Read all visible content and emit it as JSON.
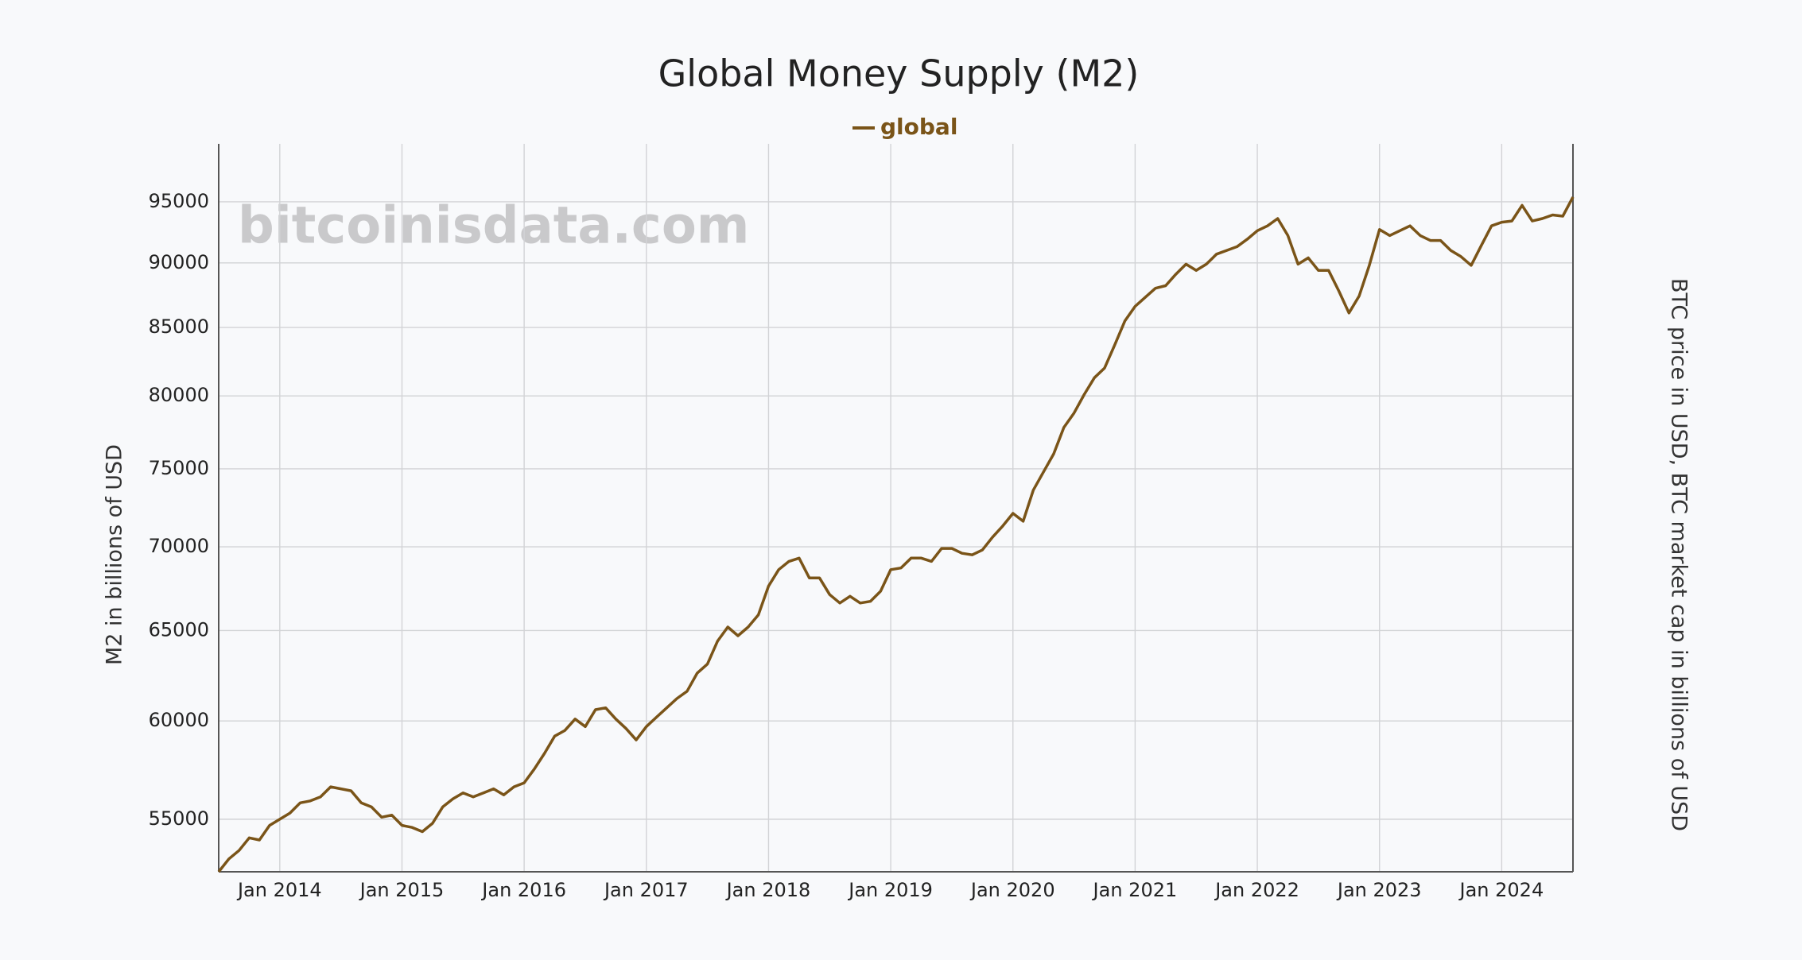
{
  "chart_data": {
    "type": "line",
    "title": "Global Money Supply (M2)",
    "watermark": "bitcoinisdata.com",
    "y_label": "M2 in billions of USD",
    "y2_label": "BTC price in USD, BTC market cap in billions of USD",
    "legend": "top",
    "log_scale": true,
    "grid": true,
    "x": [
      "2013-07",
      "2013-08",
      "2013-09",
      "2013-10",
      "2013-11",
      "2013-12",
      "2014-01",
      "2014-02",
      "2014-03",
      "2014-04",
      "2014-05",
      "2014-06",
      "2014-07",
      "2014-08",
      "2014-09",
      "2014-10",
      "2014-11",
      "2014-12",
      "2015-01",
      "2015-02",
      "2015-03",
      "2015-04",
      "2015-05",
      "2015-06",
      "2015-07",
      "2015-08",
      "2015-09",
      "2015-10",
      "2015-11",
      "2015-12",
      "2016-01",
      "2016-02",
      "2016-03",
      "2016-04",
      "2016-05",
      "2016-06",
      "2016-07",
      "2016-08",
      "2016-09",
      "2016-10",
      "2016-11",
      "2016-12",
      "2017-01",
      "2017-02",
      "2017-03",
      "2017-04",
      "2017-05",
      "2017-06",
      "2017-07",
      "2017-08",
      "2017-09",
      "2017-10",
      "2017-11",
      "2017-12",
      "2018-01",
      "2018-02",
      "2018-03",
      "2018-04",
      "2018-05",
      "2018-06",
      "2018-07",
      "2018-08",
      "2018-09",
      "2018-10",
      "2018-11",
      "2018-12",
      "2019-01",
      "2019-02",
      "2019-03",
      "2019-04",
      "2019-05",
      "2019-06",
      "2019-07",
      "2019-08",
      "2019-09",
      "2019-10",
      "2019-11",
      "2019-12",
      "2020-01",
      "2020-02",
      "2020-03",
      "2020-04",
      "2020-05",
      "2020-06",
      "2020-07",
      "2020-08",
      "2020-09",
      "2020-10",
      "2020-11",
      "2020-12",
      "2021-01",
      "2021-02",
      "2021-03",
      "2021-04",
      "2021-05",
      "2021-06",
      "2021-07",
      "2021-08",
      "2021-09",
      "2021-10",
      "2021-11",
      "2021-12",
      "2022-01",
      "2022-02",
      "2022-03",
      "2022-04",
      "2022-05",
      "2022-06",
      "2022-07",
      "2022-08",
      "2022-09",
      "2022-10",
      "2022-11",
      "2022-12",
      "2023-01",
      "2023-02",
      "2023-03",
      "2023-04",
      "2023-05",
      "2023-06",
      "2023-07",
      "2023-08",
      "2023-09",
      "2023-10",
      "2023-11",
      "2023-12",
      "2024-01",
      "2024-02",
      "2024-03",
      "2024-04",
      "2024-05",
      "2024-06",
      "2024-07",
      "2024-08"
    ],
    "series": [
      {
        "name": "global",
        "color": "#7a5418",
        "values": [
          52500,
          53100,
          53500,
          54100,
          54000,
          54700,
          55000,
          55300,
          55800,
          55900,
          56100,
          56600,
          56500,
          56400,
          55800,
          55600,
          55100,
          55200,
          54700,
          54600,
          54400,
          54800,
          55600,
          56000,
          56300,
          56100,
          56300,
          56500,
          56200,
          56600,
          56800,
          57500,
          58300,
          59200,
          59500,
          60100,
          59700,
          60600,
          60700,
          60100,
          59600,
          59000,
          59700,
          60200,
          60700,
          61200,
          61600,
          62600,
          63100,
          64400,
          65200,
          64700,
          65200,
          65900,
          67600,
          68600,
          69100,
          69300,
          68100,
          68100,
          67100,
          66600,
          67000,
          66600,
          66700,
          67300,
          68600,
          68700,
          69300,
          69300,
          69100,
          69900,
          69900,
          69600,
          69500,
          69800,
          70600,
          71300,
          72100,
          71600,
          73600,
          74800,
          76000,
          77800,
          78800,
          80100,
          81300,
          82000,
          83700,
          85500,
          86600,
          87300,
          88000,
          88200,
          89100,
          89900,
          89400,
          89900,
          90700,
          91000,
          91300,
          91900,
          92600,
          93000,
          93600,
          92200,
          89900,
          90400,
          89400,
          89400,
          87800,
          86100,
          87400,
          89800,
          92700,
          92200,
          92600,
          93000,
          92200,
          91800,
          91800,
          91000,
          90500,
          89800,
          91400,
          93000,
          93300,
          93400,
          94700,
          93400,
          93600,
          93900,
          93800,
          95400
        ]
      }
    ],
    "xlim": [
      "2013-07",
      "2024-08"
    ],
    "xticks": [
      {
        "value": "2014-01",
        "label": "Jan 2014"
      },
      {
        "value": "2015-01",
        "label": "Jan 2015"
      },
      {
        "value": "2016-01",
        "label": "Jan 2016"
      },
      {
        "value": "2017-01",
        "label": "Jan 2017"
      },
      {
        "value": "2018-01",
        "label": "Jan 2018"
      },
      {
        "value": "2019-01",
        "label": "Jan 2019"
      },
      {
        "value": "2020-01",
        "label": "Jan 2020"
      },
      {
        "value": "2021-01",
        "label": "Jan 2021"
      },
      {
        "value": "2022-01",
        "label": "Jan 2022"
      },
      {
        "value": "2023-01",
        "label": "Jan 2023"
      },
      {
        "value": "2024-01",
        "label": "Jan 2024"
      }
    ],
    "ylim": [
      52500,
      100000
    ],
    "yticks": [
      55000,
      60000,
      65000,
      70000,
      75000,
      80000,
      85000,
      90000,
      95000
    ]
  }
}
